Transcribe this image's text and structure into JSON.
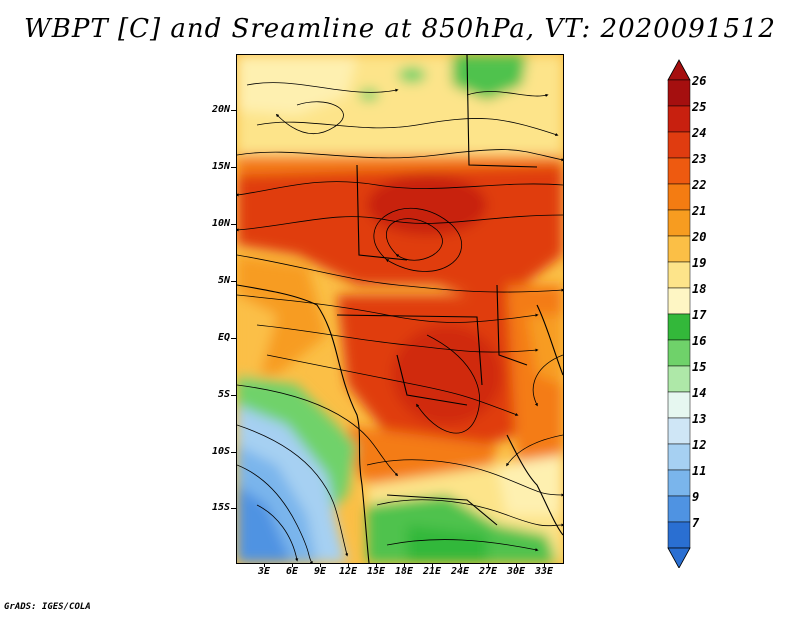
{
  "title": "WBPT [C] and Sreamline at 850hPa, VT: 2020091512",
  "footer": "GrADS: IGES/COLA",
  "lat_labels": [
    "20N",
    "15N",
    "10N",
    "5N",
    "EQ",
    "5S",
    "10S",
    "15S"
  ],
  "lon_labels": [
    "3E",
    "6E",
    "9E",
    "12E",
    "15E",
    "18E",
    "21E",
    "24E",
    "27E",
    "30E",
    "33E"
  ],
  "colorbar": {
    "labels": [
      "26",
      "25",
      "24",
      "23",
      "22",
      "21",
      "20",
      "19",
      "18",
      "17",
      "16",
      "15",
      "14",
      "13",
      "12",
      "11",
      "9",
      "7"
    ],
    "colors": [
      "#a50f0f",
      "#c8200f",
      "#e03c10",
      "#ee5a10",
      "#f47c12",
      "#f79c20",
      "#fbbf46",
      "#fde48a",
      "#fef6c4",
      "#33b83a",
      "#6fd26a",
      "#aee8a8",
      "#e6f7f0",
      "#cfe6f6",
      "#a6d0f2",
      "#7ab5ec",
      "#4f93e2",
      "#2a6fd2"
    ]
  }
}
